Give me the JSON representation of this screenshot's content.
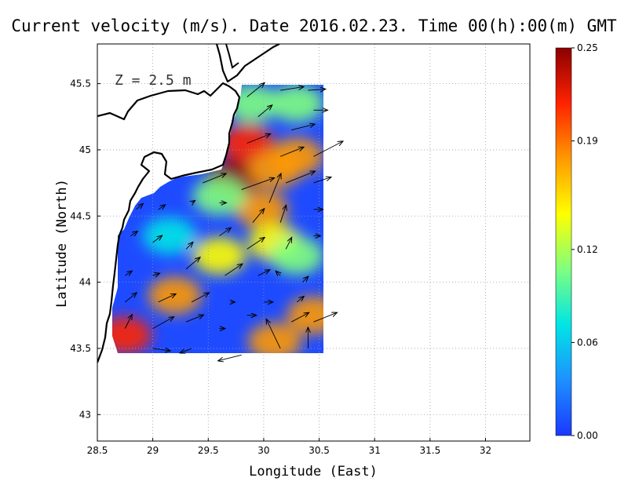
{
  "title": "Current velocity (m/s). Date 2016.02.23. Time 00(h):00(m) GMT",
  "depth_label": "Z = 2.5 m",
  "colorbar": {
    "min": 0.0,
    "max": 0.25,
    "tick_values": [
      0.0,
      0.06,
      0.12,
      0.19,
      0.25
    ],
    "tick_labels": [
      "0.00",
      "0.06",
      "0.12",
      "0.19",
      "0.25"
    ],
    "colors": [
      "#1a38ff",
      "#1e90ff",
      "#00e5e5",
      "#7fff7f",
      "#ffff00",
      "#ff9900",
      "#ff2200",
      "#8b0000"
    ]
  },
  "chart_data": {
    "type": "heatmap",
    "title": "Current velocity (m/s). Date 2016.02.23. Time 00(h):00(m) GMT",
    "xlabel": "Longitude (East)",
    "ylabel": "Latitude (North)",
    "xlim": [
      28.5,
      32.4
    ],
    "ylim": [
      42.8,
      45.8
    ],
    "xticks": [
      28.5,
      29,
      29.5,
      30,
      30.5,
      31,
      31.5,
      32
    ],
    "xtick_labels": [
      "28.5",
      "29",
      "29.5",
      "30",
      "30.5",
      "31",
      "31.5",
      "32"
    ],
    "yticks": [
      43,
      43.5,
      44,
      44.5,
      45,
      45.5
    ],
    "ytick_labels": [
      "43",
      "43.5",
      "44",
      "44.5",
      "45",
      "45.5"
    ],
    "grid": true,
    "speed_hotspots": [
      {
        "lon": 29.72,
        "lat": 44.78,
        "speed": 0.24
      },
      {
        "lon": 29.85,
        "lat": 45.05,
        "speed": 0.2
      },
      {
        "lon": 30.1,
        "lat": 44.85,
        "speed": 0.19
      },
      {
        "lon": 30.3,
        "lat": 44.95,
        "speed": 0.18
      },
      {
        "lon": 29.98,
        "lat": 44.55,
        "speed": 0.17
      },
      {
        "lon": 30.1,
        "lat": 44.3,
        "speed": 0.16
      },
      {
        "lon": 29.6,
        "lat": 44.2,
        "speed": 0.16
      },
      {
        "lon": 29.2,
        "lat": 43.9,
        "speed": 0.17
      },
      {
        "lon": 28.75,
        "lat": 43.6,
        "speed": 0.2
      },
      {
        "lon": 30.45,
        "lat": 43.75,
        "speed": 0.18
      },
      {
        "lon": 30.1,
        "lat": 43.55,
        "speed": 0.18
      },
      {
        "lon": 29.9,
        "lat": 45.35,
        "speed": 0.1
      },
      {
        "lon": 30.3,
        "lat": 45.35,
        "speed": 0.12
      },
      {
        "lon": 29.15,
        "lat": 44.35,
        "speed": 0.08
      },
      {
        "lon": 29.6,
        "lat": 44.65,
        "speed": 0.12
      },
      {
        "lon": 30.3,
        "lat": 44.2,
        "speed": 0.1
      }
    ],
    "vectors": [
      {
        "lon": 29.85,
        "lat": 45.4,
        "u": 0.15,
        "v": 0.12
      },
      {
        "lon": 30.15,
        "lat": 45.45,
        "u": 0.2,
        "v": 0.03
      },
      {
        "lon": 30.4,
        "lat": 45.45,
        "u": 0.15,
        "v": 0.01
      },
      {
        "lon": 29.95,
        "lat": 45.25,
        "u": 0.12,
        "v": 0.1
      },
      {
        "lon": 30.25,
        "lat": 45.15,
        "u": 0.2,
        "v": 0.05
      },
      {
        "lon": 30.45,
        "lat": 45.3,
        "u": 0.12,
        "v": 0.0
      },
      {
        "lon": 29.85,
        "lat": 45.05,
        "u": 0.2,
        "v": 0.08
      },
      {
        "lon": 30.15,
        "lat": 44.95,
        "u": 0.2,
        "v": 0.08
      },
      {
        "lon": 30.45,
        "lat": 44.95,
        "u": 0.25,
        "v": 0.13
      },
      {
        "lon": 29.45,
        "lat": 44.75,
        "u": 0.2,
        "v": 0.08
      },
      {
        "lon": 29.8,
        "lat": 44.7,
        "u": 0.28,
        "v": 0.1
      },
      {
        "lon": 30.05,
        "lat": 44.6,
        "u": 0.1,
        "v": 0.25
      },
      {
        "lon": 30.2,
        "lat": 44.75,
        "u": 0.25,
        "v": 0.1
      },
      {
        "lon": 30.45,
        "lat": 44.75,
        "u": 0.15,
        "v": 0.05
      },
      {
        "lon": 28.85,
        "lat": 44.55,
        "u": 0.06,
        "v": 0.05
      },
      {
        "lon": 29.05,
        "lat": 44.55,
        "u": 0.06,
        "v": 0.04
      },
      {
        "lon": 29.35,
        "lat": 44.6,
        "u": 0.03,
        "v": 0.02
      },
      {
        "lon": 29.6,
        "lat": 44.6,
        "u": 0.06,
        "v": 0.0
      },
      {
        "lon": 29.9,
        "lat": 44.45,
        "u": 0.1,
        "v": 0.12
      },
      {
        "lon": 30.15,
        "lat": 44.45,
        "u": 0.05,
        "v": 0.15
      },
      {
        "lon": 30.45,
        "lat": 44.55,
        "u": 0.08,
        "v": 0.0
      },
      {
        "lon": 28.8,
        "lat": 44.35,
        "u": 0.06,
        "v": 0.04
      },
      {
        "lon": 29.0,
        "lat": 44.3,
        "u": 0.08,
        "v": 0.06
      },
      {
        "lon": 29.3,
        "lat": 44.25,
        "u": 0.06,
        "v": 0.06
      },
      {
        "lon": 29.6,
        "lat": 44.35,
        "u": 0.1,
        "v": 0.07
      },
      {
        "lon": 29.85,
        "lat": 44.25,
        "u": 0.15,
        "v": 0.1
      },
      {
        "lon": 30.2,
        "lat": 44.25,
        "u": 0.05,
        "v": 0.1
      },
      {
        "lon": 30.45,
        "lat": 44.35,
        "u": 0.06,
        "v": 0.0
      },
      {
        "lon": 28.75,
        "lat": 44.05,
        "u": 0.06,
        "v": 0.04
      },
      {
        "lon": 29.0,
        "lat": 44.05,
        "u": 0.06,
        "v": 0.02
      },
      {
        "lon": 29.3,
        "lat": 44.1,
        "u": 0.12,
        "v": 0.1
      },
      {
        "lon": 29.65,
        "lat": 44.05,
        "u": 0.15,
        "v": 0.1
      },
      {
        "lon": 29.95,
        "lat": 44.05,
        "u": 0.1,
        "v": 0.05
      },
      {
        "lon": 30.15,
        "lat": 44.05,
        "u": -0.04,
        "v": 0.04
      },
      {
        "lon": 30.35,
        "lat": 44.0,
        "u": 0.05,
        "v": 0.05
      },
      {
        "lon": 28.75,
        "lat": 43.85,
        "u": 0.1,
        "v": 0.08
      },
      {
        "lon": 29.05,
        "lat": 43.85,
        "u": 0.15,
        "v": 0.07
      },
      {
        "lon": 29.35,
        "lat": 43.85,
        "u": 0.15,
        "v": 0.08
      },
      {
        "lon": 29.7,
        "lat": 43.85,
        "u": 0.04,
        "v": 0.0
      },
      {
        "lon": 30.0,
        "lat": 43.85,
        "u": 0.08,
        "v": 0.0
      },
      {
        "lon": 30.3,
        "lat": 43.85,
        "u": 0.06,
        "v": 0.05
      },
      {
        "lon": 28.75,
        "lat": 43.65,
        "u": 0.06,
        "v": 0.12
      },
      {
        "lon": 29.0,
        "lat": 43.65,
        "u": 0.18,
        "v": 0.1
      },
      {
        "lon": 29.3,
        "lat": 43.7,
        "u": 0.15,
        "v": 0.06
      },
      {
        "lon": 29.6,
        "lat": 43.65,
        "u": 0.05,
        "v": 0.0
      },
      {
        "lon": 29.85,
        "lat": 43.75,
        "u": 0.08,
        "v": 0.0
      },
      {
        "lon": 30.25,
        "lat": 43.7,
        "u": 0.15,
        "v": 0.08
      },
      {
        "lon": 30.45,
        "lat": 43.7,
        "u": 0.2,
        "v": 0.08
      },
      {
        "lon": 29.0,
        "lat": 43.5,
        "u": 0.15,
        "v": -0.02
      },
      {
        "lon": 29.35,
        "lat": 43.5,
        "u": -0.1,
        "v": -0.04
      },
      {
        "lon": 29.8,
        "lat": 43.45,
        "u": -0.2,
        "v": -0.05
      },
      {
        "lon": 30.15,
        "lat": 43.5,
        "u": -0.12,
        "v": 0.25
      },
      {
        "lon": 30.4,
        "lat": 43.5,
        "u": 0.0,
        "v": 0.18
      }
    ]
  }
}
